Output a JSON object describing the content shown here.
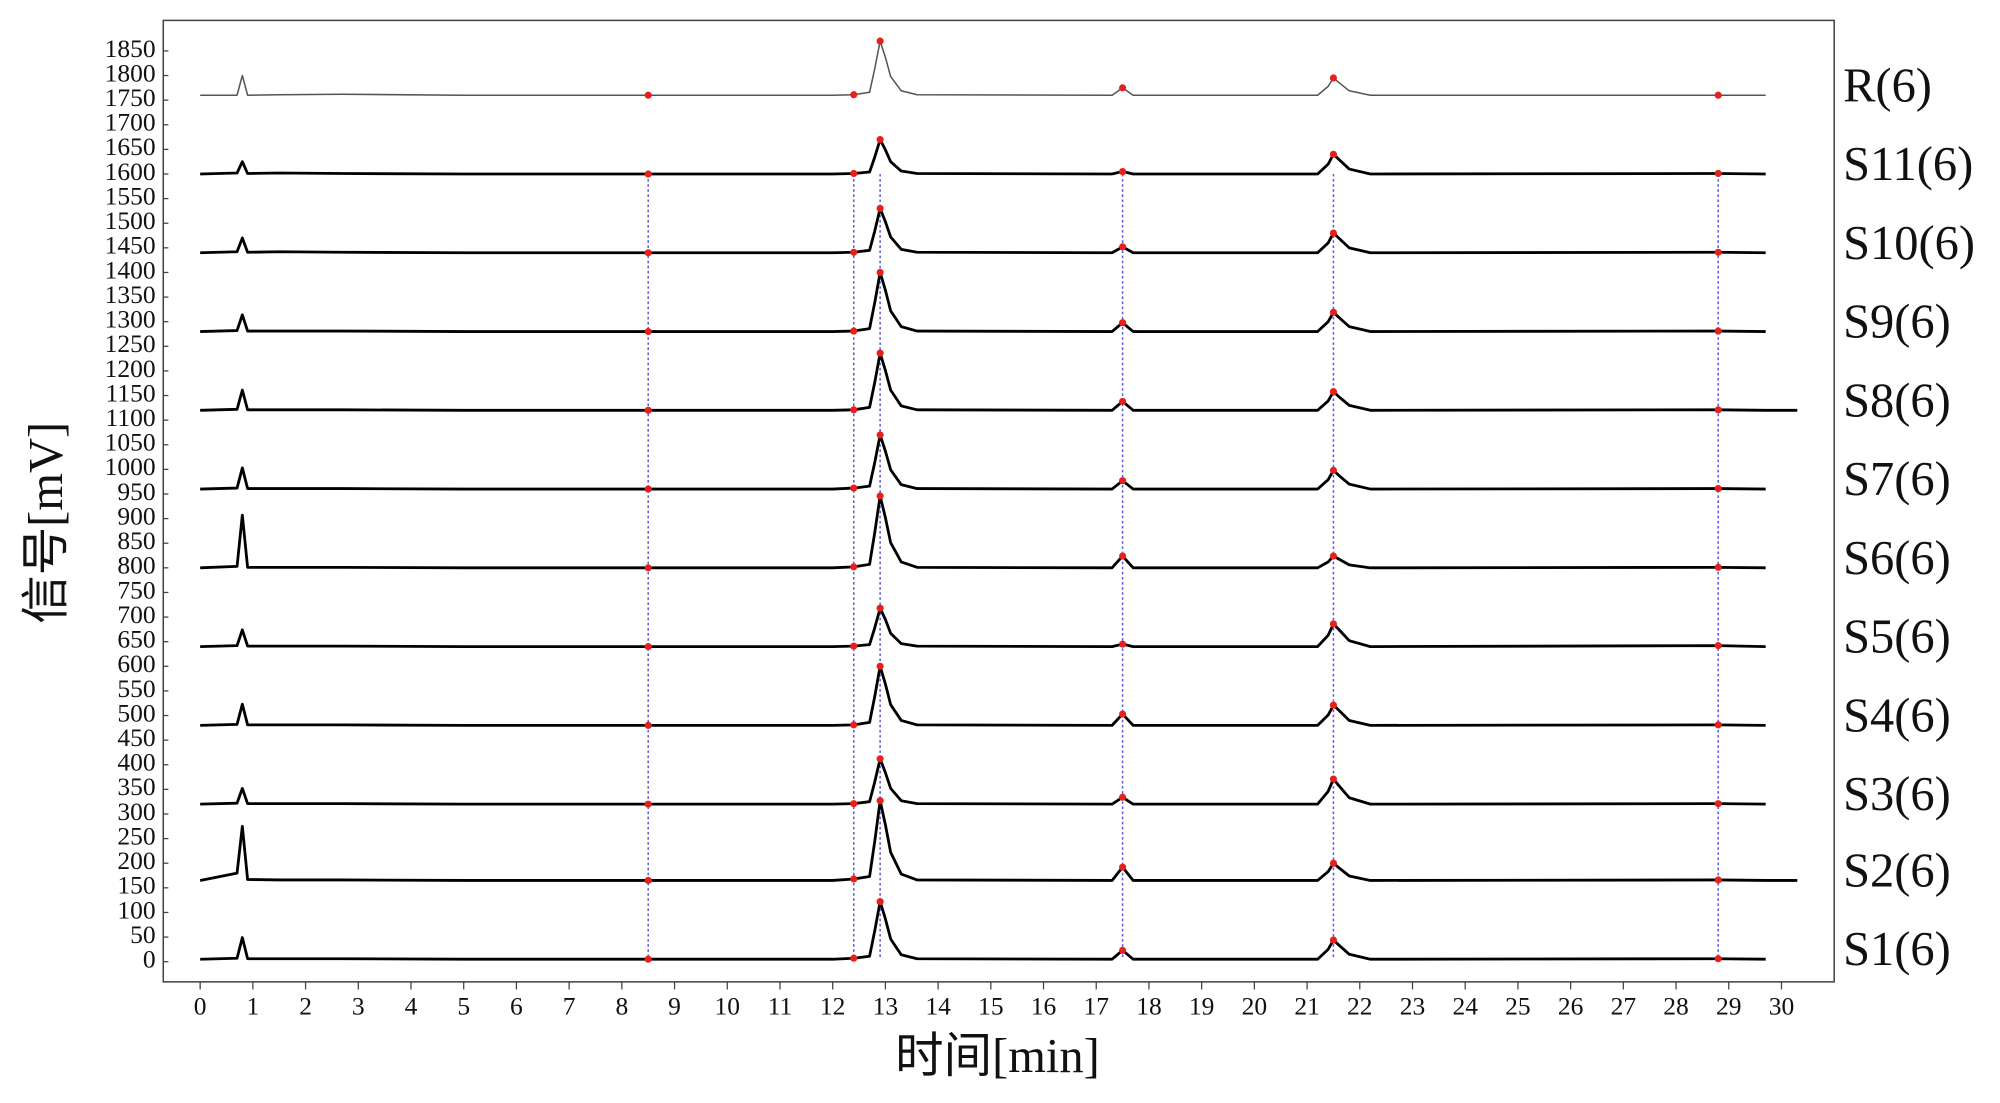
{
  "chart_data": {
    "type": "line",
    "x_label": "时间[min]",
    "y_label": "信号[mV]",
    "xlim": [
      -0.7,
      31
    ],
    "ylim": [
      -41,
      1912
    ],
    "xticks": [
      0,
      1,
      2,
      3,
      4,
      5,
      6,
      7,
      8,
      9,
      10,
      11,
      12,
      13,
      14,
      15,
      16,
      17,
      18,
      19,
      20,
      21,
      22,
      23,
      24,
      25,
      26,
      27,
      28,
      29,
      30
    ],
    "yticks": [
      0,
      50,
      100,
      150,
      200,
      250,
      300,
      350,
      400,
      450,
      500,
      550,
      600,
      650,
      700,
      750,
      800,
      850,
      900,
      950,
      1000,
      1050,
      1100,
      1150,
      1200,
      1250,
      1300,
      1350,
      1400,
      1450,
      1500,
      1550,
      1600,
      1650,
      1700,
      1750,
      1800,
      1850
    ],
    "grid": false,
    "marker_color": "#e8201a",
    "guide_color": "#5a5ae6",
    "marker_x": [
      8.5,
      12.4,
      12.9,
      17.5,
      21.5,
      28.8
    ],
    "x": [
      0,
      0.7,
      0.8,
      0.9,
      1.5,
      2.7,
      5,
      8.5,
      12.0,
      12.4,
      12.7,
      12.8,
      12.9,
      13.0,
      13.1,
      13.3,
      13.6,
      17.3,
      17.5,
      17.7,
      21.2,
      21.4,
      21.5,
      21.6,
      21.8,
      22.2,
      28.8,
      29.7,
      30.3
    ],
    "series": [
      {
        "name": "R(6)",
        "color": "#555555",
        "values": [
          1760,
          1760,
          1800,
          1760,
          1761,
          1762,
          1760,
          1760,
          1760,
          1761,
          1766,
          1815,
          1870,
          1837,
          1798,
          1769,
          1761,
          1760,
          1775,
          1760,
          1760,
          1778,
          1795,
          1786,
          1769,
          1760,
          1760,
          1760,
          null
        ]
      },
      {
        "name": "S11(6)",
        "color": "#000000",
        "values": [
          1600,
          1602,
          1625,
          1601,
          1602,
          1601,
          1600,
          1600,
          1600,
          1601,
          1604,
          1635,
          1670,
          1649,
          1625,
          1606,
          1601,
          1600,
          1605,
          1600,
          1600,
          1620,
          1640,
          1630,
          1610,
          1600,
          1601,
          1600,
          null
        ]
      },
      {
        "name": "S10(6)",
        "color": "#000000",
        "values": [
          1440,
          1442,
          1470,
          1441,
          1442,
          1441,
          1440,
          1440,
          1440,
          1441,
          1445,
          1485,
          1530,
          1503,
          1472,
          1447,
          1441,
          1440,
          1452,
          1440,
          1440,
          1460,
          1480,
          1470,
          1450,
          1440,
          1441,
          1440,
          null
        ]
      },
      {
        "name": "S9(6)",
        "color": "#000000",
        "values": [
          1280,
          1282,
          1314,
          1281,
          1281,
          1281,
          1280,
          1280,
          1280,
          1281,
          1286,
          1340,
          1400,
          1364,
          1322,
          1290,
          1281,
          1280,
          1298,
          1280,
          1280,
          1300,
          1319,
          1309,
          1290,
          1280,
          1281,
          1280,
          null
        ]
      },
      {
        "name": "S8(6)",
        "color": "#000000",
        "values": [
          1120,
          1122,
          1161,
          1121,
          1121,
          1121,
          1120,
          1120,
          1120,
          1121,
          1126,
          1178,
          1236,
          1201,
          1161,
          1129,
          1121,
          1120,
          1138,
          1120,
          1120,
          1139,
          1158,
          1148,
          1130,
          1120,
          1121,
          1120,
          1120
        ]
      },
      {
        "name": "S7(6)",
        "color": "#000000",
        "values": [
          960,
          962,
          1003,
          961,
          961,
          961,
          960,
          960,
          960,
          962,
          966,
          1015,
          1070,
          1037,
          999,
          969,
          961,
          960,
          977,
          960,
          960,
          979,
          998,
          988,
          970,
          960,
          961,
          960,
          null
        ]
      },
      {
        "name": "S6(6)",
        "color": "#000000",
        "values": [
          800,
          803,
          907,
          801,
          801,
          801,
          800,
          800,
          800,
          802,
          807,
          873,
          946,
          902,
          851,
          812,
          801,
          800,
          824,
          800,
          800,
          812,
          824,
          818,
          806,
          800,
          801,
          800,
          null
        ]
      },
      {
        "name": "S5(6)",
        "color": "#000000",
        "values": [
          640,
          642,
          674,
          641,
          641,
          641,
          640,
          640,
          640,
          641,
          644,
          679,
          718,
          695,
          667,
          646,
          641,
          640,
          645,
          640,
          640,
          663,
          686,
          675,
          652,
          640,
          642,
          640,
          null
        ]
      },
      {
        "name": "S4(6)",
        "color": "#000000",
        "values": [
          480,
          482,
          523,
          481,
          481,
          481,
          480,
          480,
          480,
          481,
          486,
          540,
          600,
          564,
          522,
          490,
          481,
          480,
          503,
          480,
          480,
          501,
          521,
          511,
          490,
          480,
          481,
          480,
          null
        ]
      },
      {
        "name": "S3(6)",
        "color": "#000000",
        "values": [
          320,
          322,
          352,
          321,
          321,
          321,
          320,
          320,
          320,
          321,
          325,
          366,
          412,
          384,
          352,
          327,
          321,
          320,
          334,
          320,
          320,
          346,
          371,
          358,
          333,
          320,
          321,
          320,
          null
        ]
      },
      {
        "name": "S2(6)",
        "color": "#000000",
        "values": [
          165,
          180,
          275,
          167,
          166,
          166,
          165,
          165,
          165,
          168,
          173,
          246,
          327,
          278,
          222,
          178,
          166,
          165,
          192,
          165,
          165,
          183,
          200,
          191,
          174,
          165,
          166,
          165,
          165
        ]
      },
      {
        "name": "S1(6)",
        "color": "#000000",
        "values": [
          5,
          7,
          49,
          6,
          6,
          6,
          5,
          5,
          5,
          7,
          11,
          64,
          122,
          87,
          46,
          14,
          6,
          5,
          23,
          5,
          5,
          25,
          44,
          34,
          15,
          5,
          6,
          5,
          null
        ]
      }
    ]
  }
}
